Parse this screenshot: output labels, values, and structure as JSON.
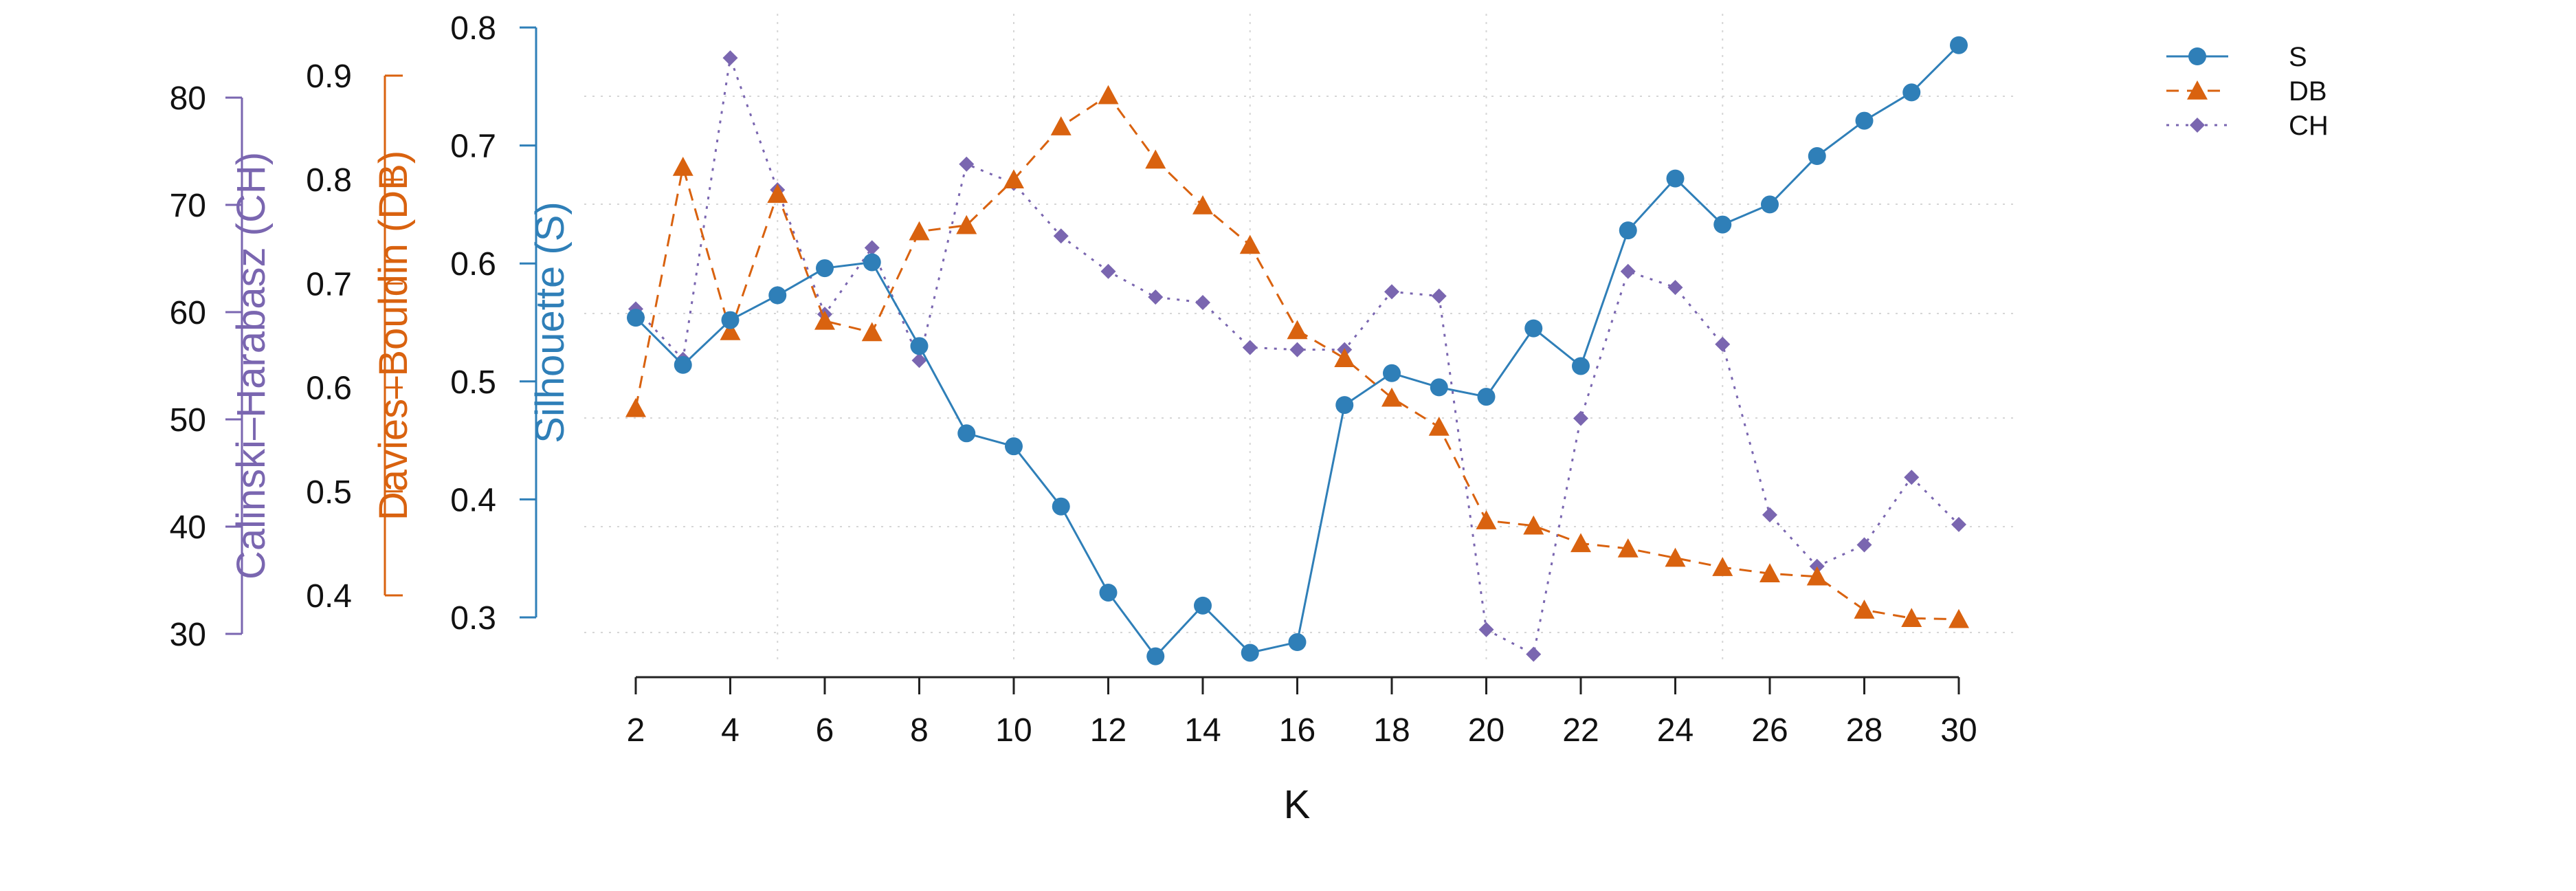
{
  "chart_data": {
    "type": "line",
    "x": [
      2,
      3,
      4,
      5,
      6,
      7,
      8,
      9,
      10,
      11,
      12,
      13,
      14,
      15,
      16,
      17,
      18,
      19,
      20,
      21,
      22,
      23,
      24,
      25,
      26,
      27,
      28,
      29,
      30
    ],
    "xlabel": "K",
    "xticks": [
      2,
      4,
      6,
      8,
      10,
      12,
      14,
      16,
      18,
      20,
      22,
      24,
      26,
      28,
      30
    ],
    "xlim": [
      2,
      30
    ],
    "grid": true,
    "legend_position": "top-right",
    "colors": {
      "S": "#2f7fb8",
      "DB": "#d9620f",
      "CH": "#7a66b0"
    },
    "axes": [
      {
        "key": "S",
        "label": "Silhouette (S)",
        "ticks": [
          0.3,
          0.4,
          0.5,
          0.6,
          0.7,
          0.8
        ],
        "tick_labels": [
          "0.3",
          "0.4",
          "0.5",
          "0.6",
          "0.7",
          "0.8"
        ],
        "range": [
          0.3,
          0.8
        ]
      },
      {
        "key": "DB",
        "label": "Davies–Bouldin (DB)",
        "ticks": [
          0.4,
          0.5,
          0.6,
          0.7,
          0.8,
          0.9
        ],
        "tick_labels": [
          "0.4",
          "0.5",
          "0.6",
          "0.7",
          "0.8",
          "0.9"
        ],
        "range": [
          0.4,
          0.9
        ]
      },
      {
        "key": "CH",
        "label": "Calinski–Harabasz (CH)",
        "ticks": [
          30,
          40,
          50,
          60,
          70,
          80
        ],
        "tick_labels": [
          "30",
          "40",
          "50",
          "60",
          "70",
          "80"
        ],
        "range": [
          30,
          80
        ]
      }
    ],
    "series": [
      {
        "name": "S",
        "marker": "circle",
        "line": "solid",
        "values": [
          0.554,
          0.514,
          0.552,
          0.573,
          0.596,
          0.601,
          0.53,
          0.456,
          0.445,
          0.394,
          0.321,
          0.267,
          0.31,
          0.27,
          0.279,
          0.48,
          0.507,
          0.495,
          0.487,
          0.545,
          0.513,
          0.628,
          0.672,
          0.633,
          0.65,
          0.691,
          0.721,
          0.745,
          0.785
        ]
      },
      {
        "name": "DB",
        "marker": "triangle",
        "line": "dashed",
        "values": [
          0.58,
          0.812,
          0.654,
          0.786,
          0.664,
          0.653,
          0.75,
          0.756,
          0.8,
          0.851,
          0.881,
          0.819,
          0.775,
          0.737,
          0.655,
          0.628,
          0.59,
          0.562,
          0.472,
          0.467,
          0.45,
          0.445,
          0.436,
          0.427,
          0.421,
          0.418,
          0.386,
          0.378,
          0.377
        ]
      },
      {
        "name": "CH",
        "marker": "diamond",
        "line": "dotted",
        "values": [
          60.3,
          55.6,
          83.7,
          71.4,
          59.8,
          66.0,
          55.5,
          73.8,
          72.0,
          67.1,
          63.8,
          61.4,
          60.9,
          56.7,
          56.5,
          56.5,
          61.9,
          61.5,
          30.4,
          28.1,
          50.1,
          63.8,
          62.3,
          57.0,
          41.1,
          36.3,
          38.3,
          44.6,
          40.2
        ]
      }
    ]
  }
}
